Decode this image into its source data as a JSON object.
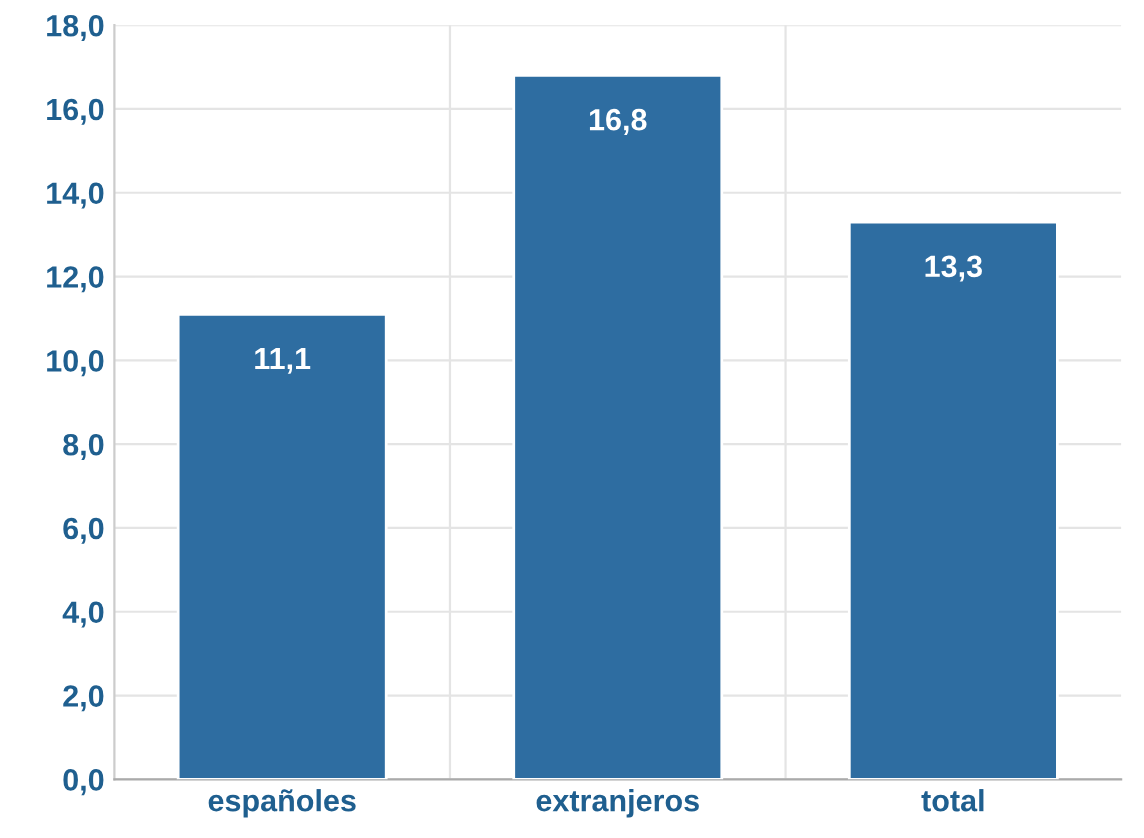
{
  "chart_data": {
    "type": "bar",
    "categories": [
      "españoles",
      "extranjeros",
      "total"
    ],
    "values": [
      11.1,
      16.8,
      13.3
    ],
    "color": "#2e6da1",
    "value_labels": [
      "11,1",
      "16,8",
      "13,3"
    ],
    "ylim": [
      0,
      18
    ],
    "yticks": [
      {
        "value": 0,
        "label": "0,0"
      },
      {
        "value": 2,
        "label": "2,0"
      },
      {
        "value": 4,
        "label": "4,0"
      },
      {
        "value": 6,
        "label": "6,0"
      },
      {
        "value": 8,
        "label": "8,0"
      },
      {
        "value": 10,
        "label": "10,0"
      },
      {
        "value": 12,
        "label": "12,0"
      },
      {
        "value": 14,
        "label": "14,0"
      },
      {
        "value": 16,
        "label": "16,0"
      },
      {
        "value": 18,
        "label": "18,0"
      }
    ],
    "grid": true
  }
}
